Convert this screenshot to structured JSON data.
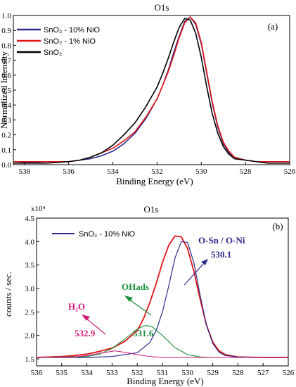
{
  "chart_data": [
    {
      "type": "line",
      "title": "O1s",
      "panel_label": "(a)",
      "xlabel": "Binding Energy (eV)",
      "ylabel": "Normalized Intensity",
      "xlim": [
        538.5,
        526
      ],
      "ylim": [
        0,
        1.0
      ],
      "x_ticks": [
        "538",
        "536",
        "534",
        "532",
        "530",
        "528",
        "526"
      ],
      "y_ticks": [
        "0.0",
        "0.1",
        "0.2",
        "0.3",
        "0.4",
        "0.5",
        "0.6",
        "0.7",
        "0.8",
        "0.9",
        "1.0"
      ],
      "legend_position": "top-left",
      "series": [
        {
          "name": "SnO₂ - 10% NiO",
          "color": "#2e2a8c",
          "x": [
            538.5,
            537,
            536,
            535.5,
            535,
            534.5,
            534,
            533.5,
            533,
            532.5,
            532,
            531.75,
            531.5,
            531.25,
            531,
            530.75,
            530.5,
            530.25,
            530,
            529.75,
            529.5,
            529.25,
            529,
            528.75,
            528.5,
            528,
            527.5,
            527,
            526
          ],
          "y": [
            0.01,
            0.02,
            0.02,
            0.03,
            0.04,
            0.06,
            0.09,
            0.14,
            0.21,
            0.31,
            0.44,
            0.53,
            0.63,
            0.75,
            0.86,
            0.96,
            0.99,
            0.94,
            0.81,
            0.61,
            0.41,
            0.25,
            0.14,
            0.08,
            0.05,
            0.03,
            0.02,
            0.02,
            0.02
          ]
        },
        {
          "name": "SnO₂ - 1% NiO",
          "color": "#e01515",
          "x": [
            538.5,
            537,
            536,
            535.5,
            535,
            534.5,
            534,
            533.5,
            533,
            532.5,
            532,
            531.75,
            531.5,
            531.25,
            531,
            530.75,
            530.5,
            530.25,
            530,
            529.75,
            529.5,
            529.25,
            529,
            528.75,
            528.5,
            528,
            527.5,
            527,
            526
          ],
          "y": [
            0.02,
            0.02,
            0.02,
            0.03,
            0.05,
            0.08,
            0.11,
            0.16,
            0.22,
            0.32,
            0.44,
            0.53,
            0.62,
            0.73,
            0.85,
            0.95,
            0.99,
            0.95,
            0.82,
            0.62,
            0.42,
            0.26,
            0.15,
            0.09,
            0.05,
            0.03,
            0.02,
            0.02,
            0.02
          ]
        },
        {
          "name": "SnO₂",
          "color": "#000000",
          "x": [
            538.5,
            537,
            536,
            535.5,
            535,
            534.5,
            534,
            533.5,
            533,
            532.5,
            532,
            531.75,
            531.5,
            531.25,
            531,
            530.75,
            530.5,
            530.25,
            530,
            529.75,
            529.5,
            529.25,
            529,
            528.75,
            528.5,
            528,
            527.5,
            527,
            526
          ],
          "y": [
            0.01,
            0.01,
            0.02,
            0.03,
            0.05,
            0.08,
            0.13,
            0.2,
            0.28,
            0.39,
            0.52,
            0.61,
            0.71,
            0.82,
            0.92,
            0.98,
            0.97,
            0.88,
            0.72,
            0.52,
            0.34,
            0.21,
            0.12,
            0.07,
            0.04,
            0.03,
            0.02,
            0.01,
            0.01
          ]
        }
      ]
    },
    {
      "type": "line",
      "title": "O1s",
      "panel_label": "(b)",
      "xlabel": "Binding Energy (eV)",
      "ylabel": "counts / sec.",
      "y_multiplier": "x10⁴",
      "xlim": [
        536,
        526
      ],
      "ylim": [
        1.35,
        4.5
      ],
      "x_ticks": [
        "536",
        "535",
        "534",
        "533",
        "532",
        "531",
        "530",
        "529",
        "528",
        "527",
        "526"
      ],
      "y_ticks": [
        "1.5",
        "2.0",
        "2.5",
        "3.0",
        "3.5",
        "4.0",
        "4.5"
      ],
      "legend_position": "top-left",
      "legend": [
        "SnO₂ - 10% NiO"
      ],
      "series": [
        {
          "color": "#e01515",
          "x": [
            536,
            535,
            534.5,
            534,
            533.5,
            533,
            532.5,
            532,
            531.75,
            531.5,
            531.25,
            531,
            530.75,
            530.5,
            530.25,
            530,
            529.75,
            529.5,
            529.25,
            529,
            528.75,
            528.5,
            528,
            527,
            526
          ],
          "y": [
            1.53,
            1.55,
            1.57,
            1.6,
            1.66,
            1.73,
            1.87,
            2.1,
            2.36,
            2.7,
            3.1,
            3.55,
            3.92,
            4.12,
            4.1,
            3.85,
            3.37,
            2.77,
            2.22,
            1.86,
            1.67,
            1.59,
            1.54,
            1.53,
            1.53
          ],
          "width": 1.8
        },
        {
          "color": "#2e2a8c",
          "name": "SnO₂ - 10% NiO",
          "x": [
            536,
            534,
            533,
            532,
            531.5,
            531.25,
            531,
            530.75,
            530.5,
            530.25,
            530,
            529.75,
            529.5,
            529.25,
            529,
            528.75,
            528.5,
            528,
            527,
            526
          ],
          "y": [
            1.53,
            1.53,
            1.55,
            1.63,
            1.85,
            2.1,
            2.5,
            3.05,
            3.65,
            4.0,
            3.98,
            3.55,
            2.85,
            2.22,
            1.83,
            1.64,
            1.57,
            1.54,
            1.53,
            1.53
          ],
          "width": 1.2
        },
        {
          "color": "#1a8f3a",
          "x": [
            536,
            534,
            533.5,
            533,
            532.5,
            532,
            531.75,
            531.6,
            531.4,
            531,
            530.5,
            530,
            529.5,
            529,
            528,
            526
          ],
          "y": [
            1.53,
            1.55,
            1.6,
            1.72,
            1.92,
            2.13,
            2.2,
            2.21,
            2.18,
            2.0,
            1.74,
            1.59,
            1.54,
            1.53,
            1.53,
            1.53
          ],
          "width": 1.1
        },
        {
          "color": "#d0197d",
          "x": [
            536,
            534.5,
            534,
            533.5,
            533,
            532.9,
            532.5,
            532,
            531.5,
            531,
            530,
            526
          ],
          "y": [
            1.53,
            1.54,
            1.57,
            1.62,
            1.66,
            1.67,
            1.64,
            1.59,
            1.55,
            1.53,
            1.53,
            1.53
          ],
          "width": 1.0
        }
      ],
      "annotations": [
        {
          "text": "O-Sn / O-Ni",
          "value_text": "530.1",
          "color": "#2e2a8c"
        },
        {
          "text": "OHads",
          "value_text": "531.6",
          "color": "#1a8f3a"
        },
        {
          "text": "H₂O",
          "value_text": "532.9",
          "color": "#d0197d"
        }
      ]
    }
  ]
}
